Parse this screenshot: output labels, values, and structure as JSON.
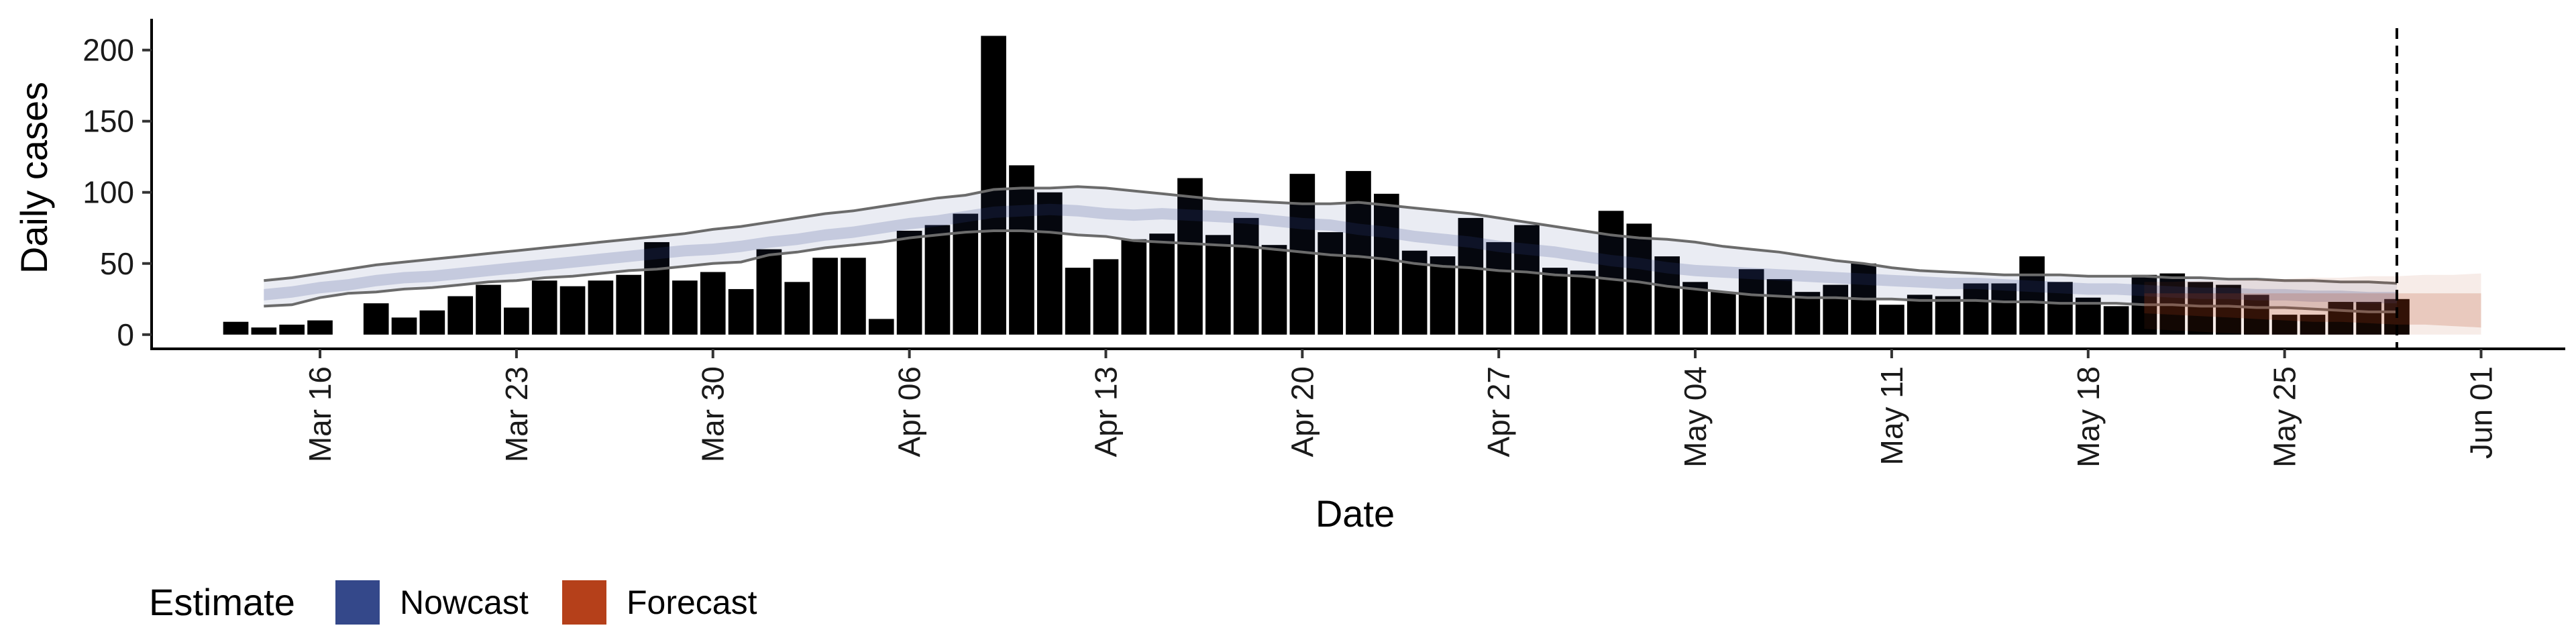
{
  "chart_data": {
    "type": "bar",
    "xlabel": "Date",
    "ylabel": "Daily cases",
    "ylim": [
      -10,
      222
    ],
    "xlim": [
      "2020-03-10",
      "2020-06-04"
    ],
    "y_ticks": [
      0,
      50,
      100,
      150,
      200
    ],
    "x_ticks": [
      {
        "date": "2020-03-16",
        "label": "Mar 16"
      },
      {
        "date": "2020-03-23",
        "label": "Mar 23"
      },
      {
        "date": "2020-03-30",
        "label": "Mar 30"
      },
      {
        "date": "2020-04-06",
        "label": "Apr 06"
      },
      {
        "date": "2020-04-13",
        "label": "Apr 13"
      },
      {
        "date": "2020-04-20",
        "label": "Apr 20"
      },
      {
        "date": "2020-04-27",
        "label": "Apr 27"
      },
      {
        "date": "2020-05-04",
        "label": "May 04"
      },
      {
        "date": "2020-05-11",
        "label": "May 11"
      },
      {
        "date": "2020-05-18",
        "label": "May 18"
      },
      {
        "date": "2020-05-25",
        "label": "May 25"
      },
      {
        "date": "2020-06-01",
        "label": "Jun 01"
      }
    ],
    "grid": false,
    "legend_position": "bottom-left",
    "vline_date": "2020-05-29",
    "bar_color": "#bdbdbd",
    "bars": {
      "start_date": "2020-03-13",
      "values": [
        9,
        5,
        7,
        10,
        0,
        22,
        12,
        17,
        27,
        35,
        19,
        38,
        34,
        38,
        42,
        65,
        38,
        44,
        32,
        60,
        37,
        54,
        54,
        11,
        73,
        77,
        85,
        210,
        119,
        100,
        47,
        53,
        67,
        71,
        110,
        70,
        82,
        63,
        113,
        72,
        115,
        99,
        59,
        55,
        82,
        65,
        77,
        47,
        45,
        87,
        78,
        55,
        37,
        30,
        46,
        39,
        30,
        35,
        50,
        21,
        28,
        27,
        36,
        36,
        55,
        37,
        26,
        20,
        42,
        43,
        37,
        35,
        28,
        14,
        14,
        23,
        23,
        25
      ]
    },
    "series": [
      {
        "name": "Nowcast",
        "color": "#34488a",
        "start_date": "2020-03-14",
        "end_date": "2020-05-19",
        "median": [
          28,
          30,
          33,
          35,
          38,
          40,
          41,
          43,
          45,
          47,
          49,
          51,
          53,
          55,
          57,
          59,
          60,
          62,
          65,
          67,
          70,
          72,
          75,
          78,
          80,
          83,
          86,
          87,
          88,
          87,
          85,
          84,
          85,
          84,
          83,
          82,
          80,
          78,
          77,
          74,
          72,
          69,
          67,
          65,
          62,
          60,
          58,
          55,
          52,
          50,
          47,
          45,
          44,
          43,
          42,
          41,
          40,
          39,
          38,
          37,
          36,
          36,
          35,
          34,
          33,
          32,
          32,
          31,
          30,
          29,
          29,
          28,
          28,
          27,
          27,
          26,
          26
        ],
        "inner_low": [
          24,
          26,
          29,
          31,
          34,
          36,
          37,
          39,
          41,
          43,
          45,
          47,
          49,
          51,
          53,
          55,
          56,
          58,
          61,
          63,
          66,
          68,
          71,
          74,
          76,
          79,
          82,
          83,
          84,
          83,
          81,
          80,
          81,
          80,
          79,
          78,
          76,
          74,
          73,
          70,
          68,
          65,
          63,
          61,
          58,
          56,
          54,
          51,
          48,
          46,
          43,
          41,
          40,
          39,
          38,
          37,
          36,
          35,
          34,
          33,
          32,
          32,
          31,
          30,
          29,
          28,
          28,
          27,
          26,
          25,
          25,
          24,
          24,
          23,
          23,
          22,
          22
        ],
        "inner_high": [
          32,
          34,
          37,
          39,
          42,
          44,
          45,
          47,
          49,
          51,
          53,
          55,
          57,
          59,
          61,
          63,
          64,
          66,
          69,
          71,
          74,
          76,
          79,
          82,
          84,
          87,
          90,
          91,
          92,
          91,
          89,
          88,
          89,
          88,
          87,
          86,
          84,
          82,
          81,
          78,
          76,
          73,
          71,
          69,
          66,
          64,
          62,
          59,
          56,
          54,
          51,
          49,
          48,
          47,
          46,
          45,
          44,
          43,
          42,
          41,
          40,
          40,
          39,
          38,
          37,
          36,
          36,
          35,
          34,
          33,
          33,
          32,
          32,
          31,
          31,
          30,
          30
        ],
        "outer_low": [
          20,
          21,
          26,
          29,
          30,
          32,
          33,
          35,
          37,
          38,
          40,
          41,
          43,
          45,
          46,
          48,
          50,
          51,
          56,
          58,
          61,
          63,
          65,
          68,
          70,
          72,
          73,
          73,
          72,
          70,
          69,
          66,
          65,
          64,
          63,
          62,
          60,
          58,
          56,
          55,
          53,
          50,
          48,
          47,
          45,
          44,
          42,
          41,
          39,
          37,
          34,
          32,
          30,
          28,
          27,
          26,
          26,
          25,
          25,
          24,
          24,
          24,
          23,
          23,
          22,
          22,
          22,
          21,
          21,
          20,
          20,
          19,
          19,
          18,
          17,
          16,
          16
        ],
        "outer_high": [
          38,
          40,
          43,
          46,
          49,
          51,
          53,
          55,
          57,
          59,
          61,
          63,
          65,
          67,
          69,
          71,
          74,
          76,
          79,
          82,
          85,
          87,
          90,
          93,
          96,
          98,
          102,
          103,
          103,
          104,
          103,
          101,
          99,
          97,
          95,
          94,
          93,
          92,
          92,
          93,
          91,
          89,
          87,
          85,
          82,
          79,
          76,
          73,
          70,
          68,
          67,
          65,
          62,
          60,
          58,
          55,
          52,
          50,
          47,
          45,
          44,
          43,
          42,
          42,
          42,
          41,
          41,
          41,
          40,
          40,
          39,
          39,
          38,
          38,
          37,
          37,
          36
        ]
      },
      {
        "name": "Forecast",
        "color": "#b5401a",
        "start_date": "2020-05-20",
        "end_date": "2020-06-01",
        "median": [
          22,
          21,
          21,
          20,
          20,
          19,
          19,
          18,
          18,
          17,
          17,
          16,
          16
        ],
        "inner_low": [
          15,
          14,
          13,
          12,
          11,
          10,
          9,
          9,
          8,
          7,
          7,
          6,
          5
        ],
        "inner_high": [
          29,
          29,
          29,
          29,
          29,
          29,
          29,
          29,
          29,
          29,
          29,
          29,
          29
        ],
        "outer_low": [
          4,
          3,
          2,
          1,
          0,
          0,
          0,
          0,
          0,
          0,
          0,
          0,
          0
        ],
        "outer_high": [
          37,
          37,
          38,
          38,
          39,
          39,
          40,
          40,
          41,
          41,
          42,
          42,
          43
        ]
      }
    ]
  },
  "legend": {
    "title": "Estimate",
    "items": [
      {
        "label": "Nowcast",
        "color": "#34488a"
      },
      {
        "label": "Forecast",
        "color": "#b5401a"
      }
    ]
  }
}
